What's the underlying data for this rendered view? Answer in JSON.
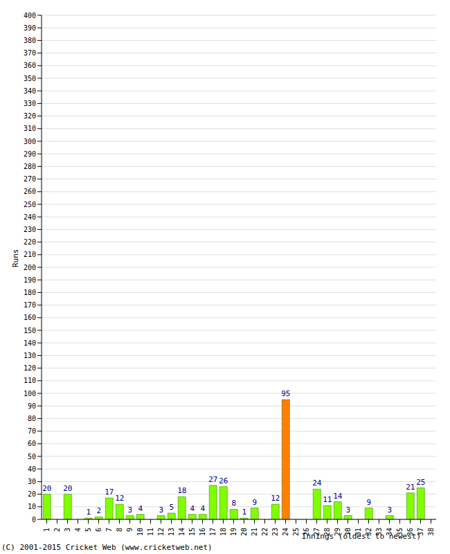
{
  "chart_data": {
    "type": "bar",
    "x_label": "Innings (oldest to newest)",
    "y_label": "Runs",
    "annotations": [
      "(C) 2001-2015 Cricket Web (www.cricketweb.net)"
    ],
    "categories": [
      "1",
      "2",
      "3",
      "4",
      "5",
      "6",
      "7",
      "8",
      "9",
      "10",
      "11",
      "12",
      "13",
      "14",
      "15",
      "16",
      "17",
      "18",
      "19",
      "20",
      "21",
      "22",
      "23",
      "24",
      "25",
      "26",
      "27",
      "28",
      "29",
      "30",
      "31",
      "32",
      "33",
      "34",
      "35",
      "36",
      "37",
      "38"
    ],
    "values": [
      20,
      0,
      20,
      0,
      1,
      2,
      17,
      12,
      3,
      4,
      0,
      3,
      5,
      18,
      4,
      4,
      27,
      26,
      8,
      1,
      9,
      0,
      12,
      95,
      0,
      0,
      24,
      11,
      14,
      3,
      0,
      9,
      0,
      3,
      0,
      21,
      25,
      0
    ],
    "colors": [
      "#80ff00",
      "#80ff00",
      "#80ff00",
      "#80ff00",
      "#80ff00",
      "#80ff00",
      "#80ff00",
      "#80ff00",
      "#80ff00",
      "#80ff00",
      "#80ff00",
      "#80ff00",
      "#80ff00",
      "#80ff00",
      "#80ff00",
      "#80ff00",
      "#80ff00",
      "#80ff00",
      "#80ff00",
      "#80ff00",
      "#80ff00",
      "#80ff00",
      "#80ff00",
      "#ff8000",
      "#80ff00",
      "#80ff00",
      "#80ff00",
      "#80ff00",
      "#80ff00",
      "#80ff00",
      "#80ff00",
      "#80ff00",
      "#80ff00",
      "#80ff00",
      "#80ff00",
      "#80ff00",
      "#80ff00",
      "#80ff00"
    ],
    "ylim": [
      0,
      400
    ],
    "yticks": [
      0,
      10,
      20,
      30,
      40,
      50,
      60,
      70,
      80,
      90,
      100,
      110,
      120,
      130,
      140,
      150,
      160,
      170,
      180,
      190,
      200,
      210,
      220,
      230,
      240,
      250,
      260,
      270,
      280,
      290,
      300,
      310,
      320,
      330,
      340,
      350,
      360,
      370,
      380,
      390,
      400
    ],
    "grid": true,
    "data_labels": true
  }
}
